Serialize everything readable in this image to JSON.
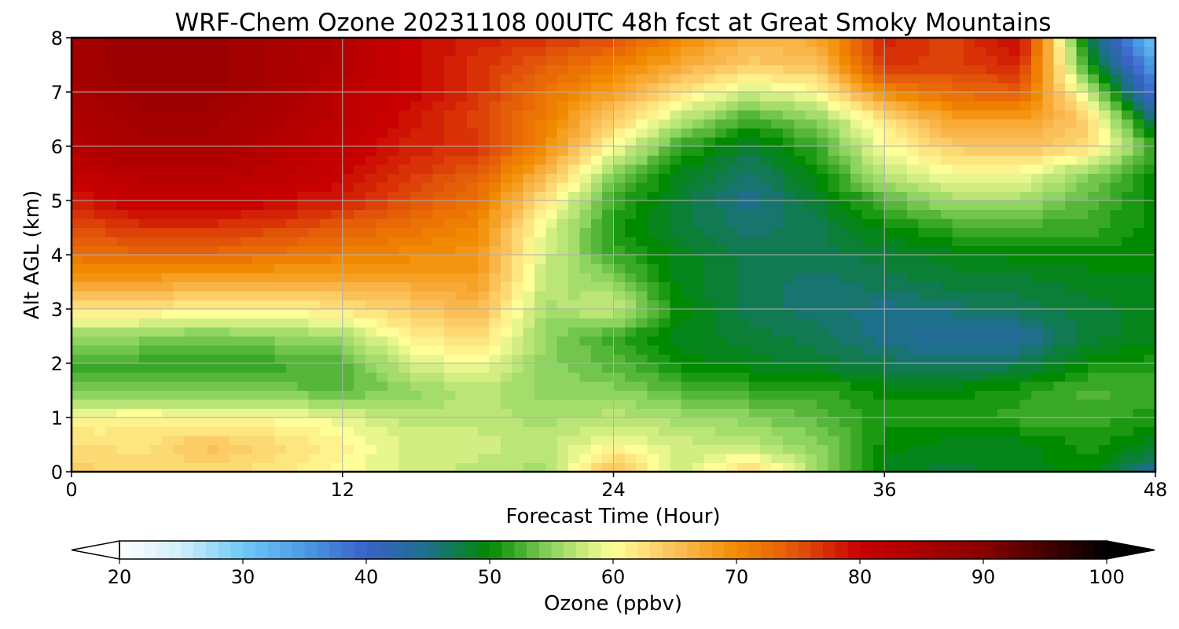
{
  "chart_data": {
    "type": "heatmap",
    "title": "WRF-Chem Ozone  20231108 00UTC 48h fcst at Great Smoky Mountains",
    "xlabel": "Forecast Time (Hour)",
    "ylabel": "Alt AGL (km)",
    "xlim": [
      0,
      48
    ],
    "ylim": [
      0,
      8
    ],
    "x_ticks": [
      0,
      12,
      24,
      36,
      48
    ],
    "y_ticks": [
      0,
      1,
      2,
      3,
      4,
      5,
      6,
      7,
      8
    ],
    "grid": true,
    "x": [
      0,
      3,
      6,
      9,
      12,
      15,
      18,
      21,
      24,
      27,
      30,
      33,
      36,
      39,
      42,
      45,
      48
    ],
    "y": [
      0,
      0.5,
      1,
      1.5,
      2,
      2.5,
      3,
      3.5,
      4,
      4.5,
      5,
      5.5,
      6,
      6.5,
      7,
      7.5,
      8
    ],
    "z": [
      [
        64,
        63,
        63,
        62,
        60,
        58,
        57,
        56,
        66,
        57,
        64,
        56,
        49,
        48,
        49,
        50,
        44
      ],
      [
        63,
        62,
        65,
        63,
        61,
        58,
        58,
        57,
        60,
        58,
        57,
        55,
        50,
        49,
        49,
        51,
        49
      ],
      [
        60,
        61,
        60,
        60,
        59,
        57,
        57,
        56,
        57,
        56,
        55,
        53,
        51,
        51,
        52,
        52,
        51
      ],
      [
        54,
        54,
        54,
        54,
        53,
        55,
        57,
        55,
        55,
        53,
        52,
        52,
        50,
        50,
        51,
        53,
        52
      ],
      [
        52,
        52,
        52,
        52,
        53,
        58,
        60,
        55,
        53,
        50,
        49,
        48,
        47,
        46,
        47,
        50,
        51
      ],
      [
        55,
        55,
        54,
        55,
        56,
        61,
        63,
        55,
        52,
        49,
        48,
        47,
        45,
        43,
        44,
        48,
        49
      ],
      [
        62,
        62,
        61,
        61,
        62,
        64,
        66,
        56,
        58,
        50,
        47,
        46,
        45,
        46,
        47,
        48,
        49
      ],
      [
        68,
        68,
        67,
        67,
        67,
        67,
        68,
        57,
        55,
        49,
        47,
        46,
        47,
        48,
        48,
        49,
        49
      ],
      [
        72,
        73,
        73,
        72,
        71,
        70,
        69,
        58,
        52,
        49,
        47,
        47,
        48,
        49,
        50,
        50,
        50
      ],
      [
        75,
        77,
        77,
        76,
        74,
        72,
        70,
        59,
        51,
        48,
        46,
        47,
        50,
        52,
        52,
        52,
        50
      ],
      [
        78,
        81,
        81,
        80,
        78,
        75,
        72,
        62,
        52,
        48,
        45,
        48,
        53,
        56,
        56,
        53,
        50
      ],
      [
        81,
        83,
        83,
        82,
        80,
        77,
        74,
        66,
        55,
        49,
        46,
        50,
        57,
        60,
        60,
        55,
        50
      ],
      [
        83,
        85,
        85,
        83,
        81,
        78,
        77,
        70,
        60,
        52,
        48,
        52,
        60,
        64,
        65,
        63,
        52
      ],
      [
        84,
        86,
        86,
        84,
        82,
        79,
        76,
        71,
        64,
        57,
        52,
        55,
        62,
        68,
        68,
        64,
        45
      ],
      [
        85,
        87,
        87,
        85,
        82,
        80,
        77,
        72,
        68,
        62,
        58,
        60,
        70,
        73,
        74,
        58,
        38
      ],
      [
        86,
        87,
        87,
        85,
        83,
        80,
        77,
        74,
        71,
        67,
        64,
        65,
        77,
        76,
        78,
        51,
        34
      ],
      [
        86,
        87,
        87,
        85,
        83,
        80,
        78,
        77,
        75,
        70,
        66,
        67,
        78,
        76,
        80,
        48,
        30
      ]
    ],
    "colorbar": {
      "label": "Ozone  (ppbv)",
      "min": 20,
      "max": 100,
      "ticks": [
        20,
        30,
        40,
        50,
        60,
        70,
        80,
        90,
        100
      ],
      "extend": "both",
      "stops": [
        {
          "value": 20,
          "color": "#ffffff"
        },
        {
          "value": 25,
          "color": "#cfeefb"
        },
        {
          "value": 30,
          "color": "#6ec9f6"
        },
        {
          "value": 35,
          "color": "#4b9ae4"
        },
        {
          "value": 40,
          "color": "#3a62c8"
        },
        {
          "value": 45,
          "color": "#1d6f8a"
        },
        {
          "value": 50,
          "color": "#008a00"
        },
        {
          "value": 55,
          "color": "#8ed460"
        },
        {
          "value": 60,
          "color": "#ffff9a"
        },
        {
          "value": 65,
          "color": "#fbc05a"
        },
        {
          "value": 70,
          "color": "#f28a00"
        },
        {
          "value": 75,
          "color": "#e2530a"
        },
        {
          "value": 80,
          "color": "#c80000"
        },
        {
          "value": 90,
          "color": "#8a0000"
        },
        {
          "value": 100,
          "color": "#000000"
        }
      ]
    }
  }
}
